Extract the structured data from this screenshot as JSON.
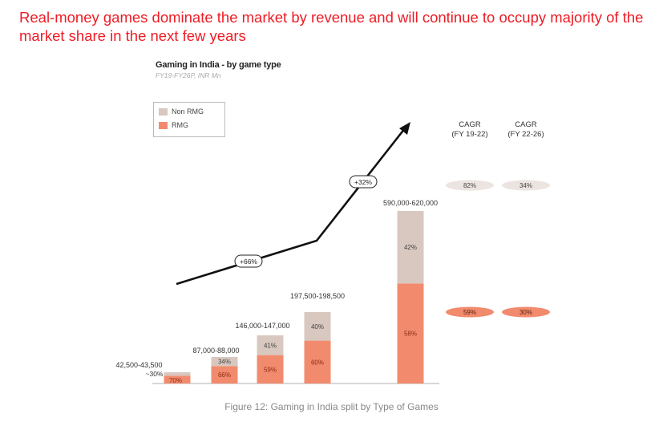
{
  "headline": "Real-money games dominate the market by revenue and will continue to occupy majority of the market share in the next few years",
  "caption": "Figure 12: Gaming in India split by Type of Games",
  "colors": {
    "rmg": "#f28b6e",
    "non_rmg": "#d8c8c0",
    "accent": "#ee1c25"
  },
  "chart_data": {
    "type": "bar",
    "title": "Gaming in India - by game type",
    "subtitle": "FY19-FY26P, INR Mn",
    "legend": [
      "Non RMG",
      "RMG"
    ],
    "legend_position": "top-left",
    "totals": [
      43000,
      87500,
      146500,
      198000,
      605000
    ],
    "total_labels": [
      "42,500-43,500",
      "87,000-88,000",
      "146,000-147,000",
      "197,500-198,500",
      "590,000-620,000"
    ],
    "series": [
      {
        "name": "RMG",
        "shares": [
          70,
          66,
          59,
          60,
          58
        ],
        "labels": [
          "70%",
          "66%",
          "59%",
          "60%",
          "58%"
        ]
      },
      {
        "name": "Non RMG",
        "shares": [
          30,
          34,
          41,
          40,
          42
        ],
        "labels": [
          "30%",
          "34%",
          "41%",
          "40%",
          "42%"
        ]
      }
    ],
    "growth_arrows": [
      "+66%",
      "+32%"
    ],
    "cagr": {
      "headers": [
        "CAGR (FY 19-22)",
        "CAGR (FY 22-26)"
      ],
      "non_rmg": [
        "82%",
        "34%"
      ],
      "rmg": [
        "59%",
        "30%"
      ]
    },
    "grid": false
  }
}
